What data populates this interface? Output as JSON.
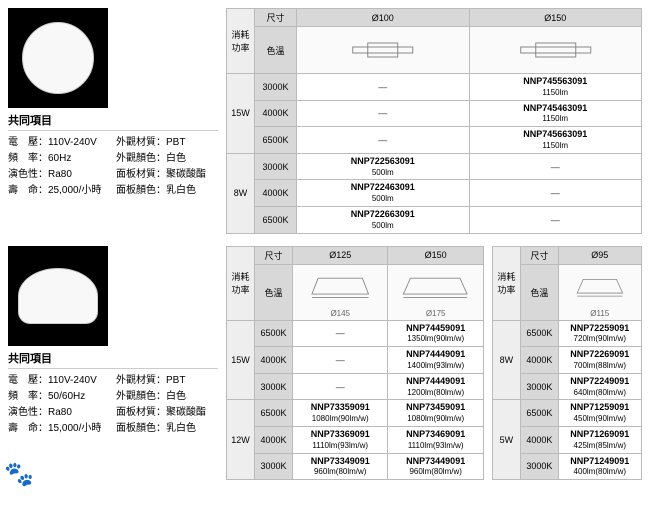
{
  "common_label": "共同項目",
  "spec_labels": {
    "voltage": "電　壓：",
    "freq": "頻　率：",
    "cri": "演色性：",
    "life": "壽　命：",
    "body_mat": "外觀材質：",
    "body_color": "外觀顏色：",
    "panel_mat": "面板材質：",
    "panel_color": "面板顏色："
  },
  "s1": {
    "voltage": "110V-240V",
    "freq": "60Hz",
    "cri": "Ra80",
    "life": "25,000/小時",
    "body_mat": "PBT",
    "body_color": "白色",
    "panel_mat": "聚碳酸酯",
    "panel_color": "乳白色",
    "hdr": {
      "power": "消耗功率",
      "size": "尺寸",
      "cct": "色溫",
      "d100": "Ø100",
      "d150": "Ø150"
    },
    "rows": [
      {
        "p": "15W",
        "c": "3000K",
        "a": "—",
        "b": "NNP745563091",
        "bl": "1150lm"
      },
      {
        "p": "",
        "c": "4000K",
        "a": "—",
        "b": "NNP745463091",
        "bl": "1150lm"
      },
      {
        "p": "",
        "c": "6500K",
        "a": "—",
        "b": "NNP745663091",
        "bl": "1150lm"
      },
      {
        "p": "8W",
        "c": "3000K",
        "a": "NNP722563091",
        "al": "500lm",
        "b": "—"
      },
      {
        "p": "",
        "c": "4000K",
        "a": "NNP722463091",
        "al": "500lm",
        "b": "—"
      },
      {
        "p": "",
        "c": "6500K",
        "a": "NNP722663091",
        "al": "500lm",
        "b": "—"
      }
    ]
  },
  "s2": {
    "voltage": "110V-240V",
    "freq": "50/60Hz",
    "cri": "Ra80",
    "life": "15,000/小時",
    "body_mat": "PBT",
    "body_color": "白色",
    "panel_mat": "聚碳酸酯",
    "panel_color": "乳白色",
    "t1": {
      "hdr": {
        "power": "消耗功率",
        "size": "尺寸",
        "cct": "色溫",
        "d125": "Ø125",
        "d150": "Ø150"
      },
      "diag": {
        "d125": "Ø145",
        "d150": "Ø175"
      },
      "rows": [
        {
          "p": "15W",
          "c": "6500K",
          "a": "—",
          "b": "NNP74459091",
          "bl": "1350lm(90lm/w)"
        },
        {
          "p": "",
          "c": "4000K",
          "a": "—",
          "b": "NNP74449091",
          "bl": "1400lm(93lm/w)"
        },
        {
          "p": "",
          "c": "3000K",
          "a": "—",
          "b": "NNP74449091",
          "bl": "1200lm(80lm/w)"
        },
        {
          "p": "12W",
          "c": "6500K",
          "a": "NNP73359091",
          "al": "1080lm(90lm/w)",
          "b": "NNP73459091",
          "bl": "1080lm(90lm/w)"
        },
        {
          "p": "",
          "c": "4000K",
          "a": "NNP73369091",
          "al": "1110lm(93lm/w)",
          "b": "NNP73469091",
          "bl": "1110lm(93lm/w)"
        },
        {
          "p": "",
          "c": "3000K",
          "a": "NNP73349091",
          "al": "960lm(80lm/w)",
          "b": "NNP73449091",
          "bl": "960lm(80lm/w)"
        }
      ]
    },
    "t2": {
      "hdr": {
        "power": "消耗功率",
        "size": "尺寸",
        "cct": "色溫",
        "d95": "Ø95"
      },
      "diag": {
        "d95": "Ø115"
      },
      "rows": [
        {
          "p": "8W",
          "c": "6500K",
          "a": "NNP72259091",
          "al": "720lm(90lm/w)"
        },
        {
          "p": "",
          "c": "4000K",
          "a": "NNP72269091",
          "al": "700lm(88lm/w)"
        },
        {
          "p": "",
          "c": "3000K",
          "a": "NNP72249091",
          "al": "640lm(80lm/w)"
        },
        {
          "p": "5W",
          "c": "6500K",
          "a": "NNP71259091",
          "al": "450lm(90lm/w)"
        },
        {
          "p": "",
          "c": "4000K",
          "a": "NNP71269091",
          "al": "425lm(85lm/w)"
        },
        {
          "p": "",
          "c": "3000K",
          "a": "NNP71249091",
          "al": "400lm(80lm/w)"
        }
      ]
    }
  }
}
